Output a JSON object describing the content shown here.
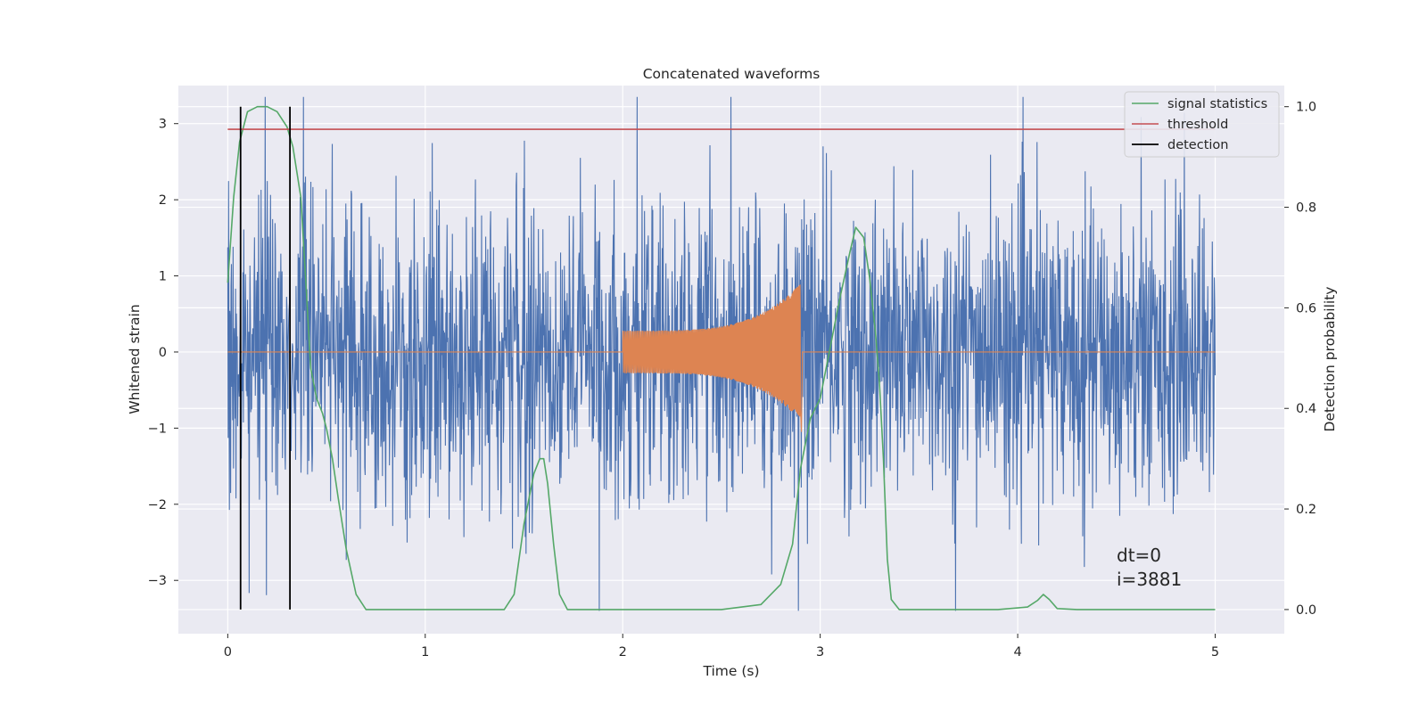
{
  "chart_data": {
    "type": "line",
    "title": "Concatenated waveforms",
    "xlabel": "Time (s)",
    "ylabel": "Whitened strain",
    "y2label": "Detection probability",
    "xlim": [
      -0.25,
      5.35
    ],
    "ylim": [
      -3.7,
      3.5
    ],
    "y2lim": [
      -0.048,
      1.042
    ],
    "x_ticks": [
      0,
      1,
      2,
      3,
      4,
      5
    ],
    "x_tick_labels": [
      "0",
      "1",
      "2",
      "3",
      "4",
      "5"
    ],
    "y_ticks": [
      -3,
      -2,
      -1,
      0,
      1,
      2,
      3
    ],
    "y_tick_labels": [
      "−3",
      "−2",
      "−1",
      "0",
      "1",
      "2",
      "3"
    ],
    "y2_ticks": [
      0.0,
      0.2,
      0.4,
      0.6,
      0.8,
      1.0
    ],
    "y2_tick_labels": [
      "0.0",
      "0.2",
      "0.4",
      "0.6",
      "0.8",
      "1.0"
    ],
    "grid": true,
    "legend_position": "top-right",
    "legend": [
      "signal statistics",
      "threshold",
      "detection"
    ],
    "annotations": [
      "dt=0",
      "i=3881"
    ],
    "noise_series": {
      "x_range": [
        0,
        5
      ],
      "envelope_low": -3.4,
      "envelope_high": 3.35,
      "color": "#4c72b0"
    },
    "injection_series": {
      "x_range": [
        2.0,
        2.9
      ],
      "start_amplitude": 0.28,
      "peak_amplitude": 0.9,
      "color": "#dd8452"
    },
    "series": [
      {
        "name": "signal statistics",
        "axis": "right",
        "color": "#55a868",
        "x": [
          0,
          0.03,
          0.06,
          0.1,
          0.15,
          0.2,
          0.25,
          0.3,
          0.33,
          0.37,
          0.4,
          0.42,
          0.45,
          0.48,
          0.5,
          0.53,
          0.56,
          0.6,
          0.65,
          0.7,
          1.0,
          1.4,
          1.45,
          1.5,
          1.55,
          1.58,
          1.6,
          1.62,
          1.65,
          1.68,
          1.72,
          1.8,
          2.0,
          2.5,
          2.7,
          2.8,
          2.86,
          2.9,
          2.95,
          3.0,
          3.05,
          3.1,
          3.15,
          3.18,
          3.22,
          3.25,
          3.28,
          3.3,
          3.32,
          3.34,
          3.36,
          3.4,
          3.6,
          3.9,
          4.05,
          4.1,
          4.13,
          4.16,
          4.2,
          4.3,
          4.6,
          5.0
        ],
        "y": [
          0.65,
          0.82,
          0.93,
          0.99,
          1.0,
          1.0,
          0.99,
          0.96,
          0.92,
          0.82,
          0.62,
          0.48,
          0.42,
          0.39,
          0.36,
          0.3,
          0.22,
          0.12,
          0.03,
          0.0,
          0.0,
          0.0,
          0.03,
          0.17,
          0.27,
          0.3,
          0.3,
          0.25,
          0.13,
          0.03,
          0.0,
          0.0,
          0.0,
          0.0,
          0.01,
          0.05,
          0.13,
          0.28,
          0.38,
          0.42,
          0.52,
          0.62,
          0.71,
          0.76,
          0.74,
          0.66,
          0.55,
          0.45,
          0.3,
          0.1,
          0.02,
          0.0,
          0.0,
          0.0,
          0.005,
          0.018,
          0.03,
          0.02,
          0.002,
          0.0,
          0.0,
          0.0
        ]
      },
      {
        "name": "threshold",
        "axis": "right",
        "color": "#c44e52",
        "x": [
          0,
          5
        ],
        "y": [
          0.955,
          0.955
        ]
      },
      {
        "name": "detection",
        "axis": "right",
        "color": "#000000",
        "x": [
          0.065,
          0.315
        ],
        "y_span": [
          0.0,
          1.0
        ]
      }
    ]
  }
}
